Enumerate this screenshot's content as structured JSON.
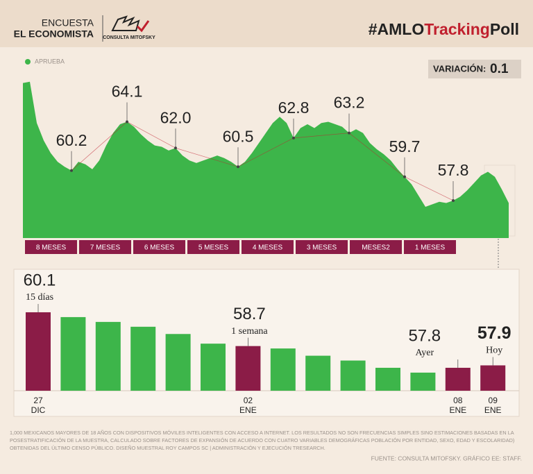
{
  "header": {
    "brand_top": "ENCUESTA",
    "brand": "EL ECONOMISTA",
    "logo": "CONSULTA MITOFSKY",
    "hashtag": [
      "#AMLO",
      "Tracking",
      "Poll"
    ]
  },
  "variation": {
    "label": "VARIACIÓN:",
    "value": 0.1
  },
  "chart_data": [
    {
      "type": "area",
      "legend": "top-left",
      "series": [
        {
          "name": "APRUEBA",
          "color": "#3db54a",
          "values": [
            67.2,
            67.3,
            64.0,
            62.6,
            61.6,
            60.9,
            60.5,
            60.2,
            60.9,
            60.7,
            60.3,
            61.0,
            62.2,
            63.2,
            63.9,
            64.1,
            63.7,
            63.1,
            62.6,
            62.2,
            62.1,
            61.8,
            62.0,
            61.4,
            61.0,
            60.8,
            61.0,
            61.2,
            61.4,
            61.2,
            60.9,
            60.5,
            60.9,
            61.6,
            62.4,
            63.2,
            64.0,
            64.5,
            64.0,
            62.8,
            63.6,
            63.9,
            63.6,
            64.0,
            64.1,
            63.9,
            63.7,
            63.2,
            63.5,
            63.2,
            62.4,
            61.9,
            61.5,
            61.0,
            60.3,
            59.7,
            59.1,
            58.2,
            57.3,
            57.5,
            57.7,
            57.6,
            57.8,
            58.1,
            58.6,
            59.2,
            59.8,
            60.1,
            59.7,
            58.7,
            57.6
          ],
          "value_labels": [
            null,
            null,
            null,
            null,
            null,
            null,
            null,
            "60.2",
            null,
            null,
            null,
            null,
            null,
            null,
            null,
            "64.1",
            null,
            null,
            null,
            null,
            null,
            null,
            "62.0",
            null,
            null,
            null,
            null,
            null,
            null,
            null,
            null,
            "60.5",
            null,
            null,
            null,
            null,
            null,
            null,
            null,
            "62.8",
            null,
            null,
            null,
            null,
            null,
            null,
            null,
            "63.2",
            null,
            null,
            null,
            null,
            null,
            null,
            null,
            "59.7",
            null,
            null,
            null,
            null,
            null,
            null,
            "57.8",
            null,
            null,
            null,
            null,
            null,
            null,
            null,
            null
          ]
        }
      ],
      "ylim": [
        54.8,
        67.4
      ],
      "periods": [
        "8 MESES",
        "7 MESES",
        "6 MESES",
        "5 MESES",
        "4 MESES",
        "3 MESES",
        "MESES2",
        "1 MESES"
      ],
      "period_color": "#8b1c47"
    },
    {
      "type": "bar",
      "categories": [
        [
          "27",
          "DIC"
        ],
        null,
        null,
        null,
        null,
        null,
        [
          "02",
          "ENE"
        ],
        null,
        null,
        null,
        null,
        null,
        [
          "08",
          "ENE"
        ],
        [
          "09",
          "ENE"
        ]
      ],
      "values": [
        60.1,
        59.9,
        59.7,
        59.5,
        59.2,
        58.8,
        58.7,
        58.6,
        58.3,
        58.1,
        57.8,
        57.6,
        57.8,
        57.9
      ],
      "value_labels": [
        "60.1",
        null,
        null,
        null,
        null,
        null,
        "58.7",
        null,
        null,
        null,
        null,
        null,
        "57.8",
        "57.9"
      ],
      "sublabels": [
        "15 días",
        null,
        null,
        null,
        null,
        null,
        "1 semana",
        null,
        null,
        null,
        null,
        null,
        "Ayer",
        "Hoy"
      ],
      "colors": [
        "#8b1c47",
        "#3db54a",
        "#3db54a",
        "#3db54a",
        "#3db54a",
        "#3db54a",
        "#8b1c47",
        "#3db54a",
        "#3db54a",
        "#3db54a",
        "#3db54a",
        "#3db54a",
        "#8b1c47",
        "#8b1c47"
      ],
      "ylim": [
        56.85,
        61.68
      ]
    }
  ],
  "footer": {
    "note": [
      "1,000 MEXICANOS MAYORES DE 18 AÑOS CON DISPOSITIVOS MÓVILES INTELIGENTES CON ACCESO A INTERNET. LOS RESULTADOS NO SON FRECUENCIAS SIMPLES SINO ESTIMACIONES BASADAS EN LA",
      "POSESTRATIFICACIÓN DE LA MUESTRA, CALCULADO SOBRE FACTORES DE EXPANSIÓN DE ACUERDO CON CUATRO VARIABLES DEMOGRÁFICAS POBLACIÓN POR ENTIDAD, SEXO, EDAD Y ESCOLARIDAD)",
      "OBTENIDAS DEL ÚLTIMO CENSO PÚBLICO. DISEÑO MUESTRAL ROY CAMPOS SC | ADMINISTRACIÓN Y EJECUCIÓN TRESEARCH."
    ],
    "source": "FUENTE: CONSULTA MITOFSKY. GRÁFICO EE: STAFF."
  }
}
